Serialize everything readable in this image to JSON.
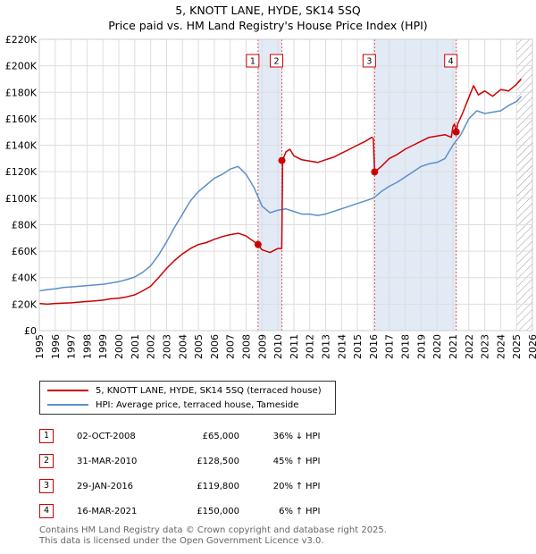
{
  "header": {
    "title": "5, KNOTT LANE, HYDE, SK14 5SQ",
    "subtitle": "Price paid vs. HM Land Registry's House Price Index (HPI)"
  },
  "chart_data": {
    "type": "line",
    "title": "5, KNOTT LANE, HYDE, SK14 5SQ",
    "subtitle": "Price paid vs. HM Land Registry's House Price Index (HPI)",
    "xlabel": "",
    "ylabel": "",
    "xlim": [
      1995,
      2026
    ],
    "ylim": [
      0,
      220000
    ],
    "x_ticks": [
      1995,
      1996,
      1997,
      1998,
      1999,
      2000,
      2001,
      2002,
      2003,
      2004,
      2005,
      2006,
      2007,
      2008,
      2009,
      2010,
      2011,
      2012,
      2013,
      2014,
      2015,
      2016,
      2017,
      2018,
      2019,
      2020,
      2021,
      2022,
      2023,
      2024,
      2025,
      2026
    ],
    "y_ticks": [
      {
        "value": 0,
        "label": "£0"
      },
      {
        "value": 20000,
        "label": "£20K"
      },
      {
        "value": 40000,
        "label": "£40K"
      },
      {
        "value": 60000,
        "label": "£60K"
      },
      {
        "value": 80000,
        "label": "£80K"
      },
      {
        "value": 100000,
        "label": "£100K"
      },
      {
        "value": 120000,
        "label": "£120K"
      },
      {
        "value": 140000,
        "label": "£140K"
      },
      {
        "value": 160000,
        "label": "£160K"
      },
      {
        "value": 180000,
        "label": "£180K"
      },
      {
        "value": 200000,
        "label": "£200K"
      },
      {
        "value": 220000,
        "label": "£220K"
      }
    ],
    "grid": true,
    "series": [
      {
        "name": "5, KNOTT LANE, HYDE, SK14 5SQ (terraced house)",
        "color": "#cc0000",
        "x": [
          1995.0,
          1995.5,
          1996.0,
          1996.5,
          1997.0,
          1997.5,
          1998.0,
          1998.5,
          1999.0,
          1999.5,
          2000.0,
          2000.5,
          2001.0,
          2001.5,
          2002.0,
          2002.5,
          2003.0,
          2003.5,
          2004.0,
          2004.5,
          2005.0,
          2005.5,
          2006.0,
          2006.5,
          2007.0,
          2007.5,
          2008.0,
          2008.4,
          2008.75,
          2009.0,
          2009.5,
          2010.0,
          2010.24,
          2010.3,
          2010.5,
          2010.75,
          2011.0,
          2011.5,
          2012.0,
          2012.5,
          2013.0,
          2013.5,
          2014.0,
          2014.5,
          2015.0,
          2015.5,
          2015.9,
          2016.0,
          2016.08,
          2016.5,
          2017.0,
          2017.5,
          2018.0,
          2018.5,
          2019.0,
          2019.5,
          2020.0,
          2020.5,
          2020.9,
          2021.0,
          2021.1,
          2021.21,
          2021.3,
          2021.6,
          2022.0,
          2022.3,
          2022.6,
          2023.0,
          2023.5,
          2024.0,
          2024.5,
          2025.0,
          2025.3
        ],
        "y": [
          20500,
          20000,
          20500,
          20800,
          21000,
          21500,
          22000,
          22500,
          23000,
          24000,
          24500,
          25500,
          27000,
          30000,
          33500,
          40000,
          47000,
          53000,
          58000,
          62000,
          65000,
          66500,
          69000,
          71000,
          72500,
          73500,
          71500,
          68000,
          65000,
          61000,
          59000,
          62000,
          62000,
          128500,
          135000,
          137000,
          132000,
          129000,
          128000,
          127000,
          129000,
          131000,
          134000,
          137000,
          140000,
          143000,
          146000,
          145000,
          119800,
          124000,
          130000,
          133000,
          137000,
          140000,
          143000,
          146000,
          147000,
          148000,
          146000,
          154000,
          156000,
          150000,
          156000,
          164000,
          176000,
          185000,
          178000,
          181000,
          177000,
          182000,
          181000,
          186000,
          190000
        ]
      },
      {
        "name": "HPI: Average price, terraced house, Tameside",
        "color": "#5b8fc9",
        "x": [
          1995.0,
          1995.5,
          1996.0,
          1996.5,
          1997.0,
          1997.5,
          1998.0,
          1998.5,
          1999.0,
          1999.5,
          2000.0,
          2000.5,
          2001.0,
          2001.5,
          2002.0,
          2002.5,
          2003.0,
          2003.5,
          2004.0,
          2004.5,
          2005.0,
          2005.5,
          2006.0,
          2006.5,
          2007.0,
          2007.5,
          2008.0,
          2008.5,
          2009.0,
          2009.5,
          2010.0,
          2010.5,
          2011.0,
          2011.5,
          2012.0,
          2012.5,
          2013.0,
          2013.5,
          2014.0,
          2014.5,
          2015.0,
          2015.5,
          2016.0,
          2016.5,
          2017.0,
          2017.5,
          2018.0,
          2018.5,
          2019.0,
          2019.5,
          2020.0,
          2020.5,
          2021.0,
          2021.5,
          2022.0,
          2022.5,
          2023.0,
          2023.5,
          2024.0,
          2024.5,
          2025.0,
          2025.3
        ],
        "y": [
          30000,
          31000,
          31500,
          32500,
          33000,
          33500,
          34000,
          34500,
          35000,
          36000,
          37000,
          38500,
          40500,
          44000,
          49000,
          57000,
          67000,
          78000,
          88000,
          98000,
          105000,
          110000,
          115000,
          118000,
          122000,
          124000,
          118000,
          108000,
          94000,
          89000,
          91000,
          92000,
          90000,
          88000,
          88000,
          87000,
          88000,
          90000,
          92000,
          94000,
          96000,
          98000,
          100000,
          105000,
          109000,
          112000,
          116000,
          120000,
          124000,
          126000,
          127000,
          130000,
          140000,
          148000,
          160000,
          166000,
          164000,
          165000,
          166000,
          170000,
          173000,
          177000
        ]
      }
    ],
    "sales": [
      {
        "num": "1",
        "date": "02-OCT-2008",
        "price": "£65,000",
        "pct": "36%",
        "arrow": "↓",
        "hpi": "HPI",
        "x": 2008.75,
        "y": 65000
      },
      {
        "num": "2",
        "date": "31-MAR-2010",
        "price": "£128,500",
        "pct": "45%",
        "arrow": "↑",
        "hpi": "HPI",
        "x": 2010.25,
        "y": 128500
      },
      {
        "num": "3",
        "date": "29-JAN-2016",
        "price": "£119,800",
        "pct": "20%",
        "arrow": "↑",
        "hpi": "HPI",
        "x": 2016.08,
        "y": 119800
      },
      {
        "num": "4",
        "date": "16-MAR-2021",
        "price": "£150,000",
        "pct": "6%",
        "arrow": "↑",
        "hpi": "HPI",
        "x": 2021.21,
        "y": 150000
      }
    ],
    "shaded_periods": [
      [
        2008.75,
        2010.25
      ],
      [
        2016.08,
        2021.21
      ]
    ],
    "hatched_from": 2025.0
  },
  "legend": {
    "property_label": "5, KNOTT LANE, HYDE, SK14 5SQ (terraced house)",
    "hpi_label": "HPI: Average price, terraced house, Tameside",
    "property_color": "#cc0000",
    "hpi_color": "#5b8fc9"
  },
  "footer": {
    "line1": "Contains HM Land Registry data © Crown copyright and database right 2025.",
    "line2": "This data is licensed under the Open Government Licence v3.0."
  }
}
